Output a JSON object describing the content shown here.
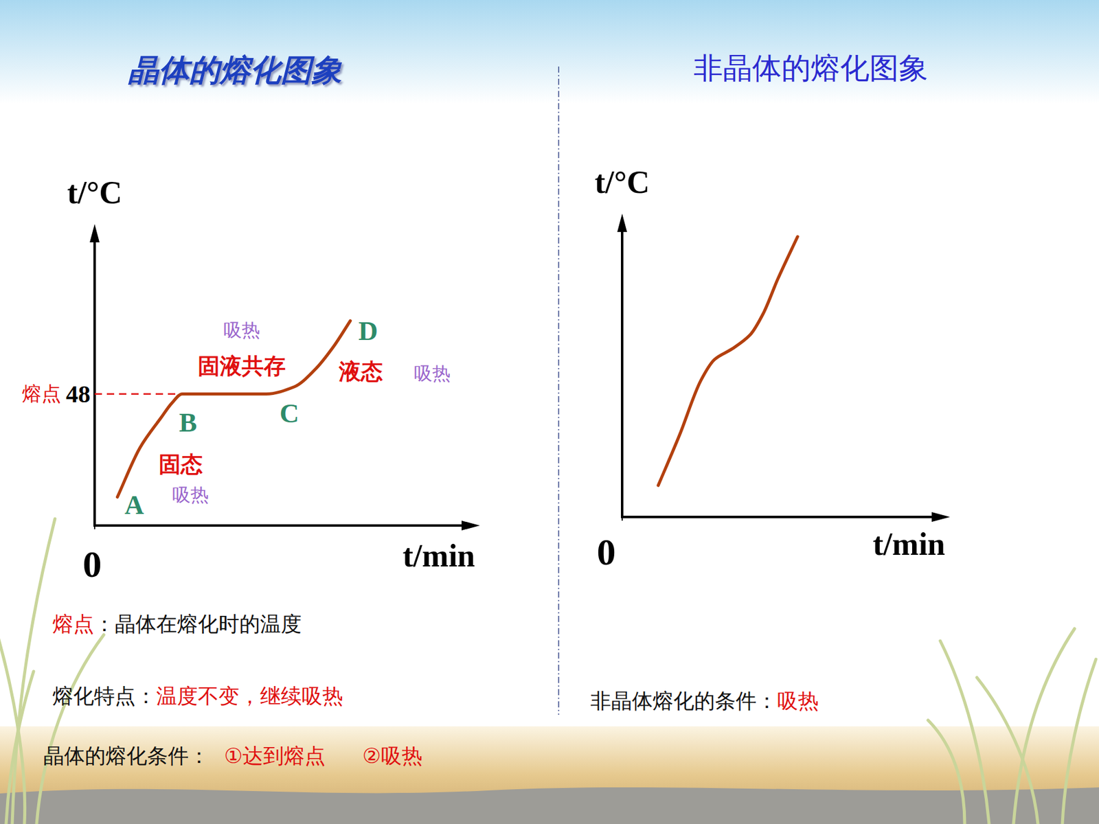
{
  "chart_data": [
    {
      "type": "line",
      "title": "晶体的熔化图象",
      "x_label": "t/min",
      "y_label": "t/°C",
      "x": [
        1.3,
        2.6,
        3.8,
        4.4,
        5,
        9.8,
        11.4,
        12.6,
        13.6,
        14.6
      ],
      "series": [
        {
          "color": "#b3400e",
          "values": [
            10.4,
            28.5,
            39.4,
            44.6,
            48,
            48,
            50.6,
            57,
            64.9,
            74.7
          ]
        }
      ],
      "xlim": [
        0,
        22
      ],
      "ylim": [
        0,
        110
      ],
      "xticks": [
        0
      ],
      "yticks": [
        48
      ],
      "annotations": [
        "熔点",
        "吸热",
        "固液共存",
        "D",
        "液态",
        "吸热",
        "B",
        "C",
        "固态",
        "A",
        "吸热"
      ]
    },
    {
      "type": "line",
      "title": "非晶体的熔化图象",
      "x_label": "t/min",
      "y_label": "t/°C",
      "x": [
        2.2,
        3.5,
        4.8,
        5.65,
        6.7,
        7.8,
        8.6,
        9.5,
        10.7
      ],
      "series": [
        {
          "color": "#b3400e",
          "values": [
            10.4,
            27,
            45,
            52,
            55.4,
            60,
            67,
            78.5,
            92.4
          ]
        }
      ],
      "xlim": [
        0,
        20
      ],
      "ylim": [
        0,
        100
      ],
      "xticks": [
        0
      ],
      "yticks": []
    }
  ],
  "captions": [
    {
      "parts": [
        {
          "text": "熔点",
          "highlight": true
        },
        {
          "text": "：晶体在熔化时的温度"
        }
      ]
    },
    {
      "parts": [
        {
          "text": "熔化特点："
        },
        {
          "text": "温度不变，继续吸热",
          "highlight": true
        }
      ]
    },
    {
      "parts": [
        {
          "text": "晶体的熔化条件："
        },
        {
          "text": "①达到熔点",
          "highlight": true
        },
        {
          "text": "②吸热",
          "highlight": true
        }
      ]
    },
    {
      "parts": [
        {
          "text": "非晶体熔化的条件："
        },
        {
          "text": "吸热",
          "highlight": true
        }
      ]
    }
  ]
}
